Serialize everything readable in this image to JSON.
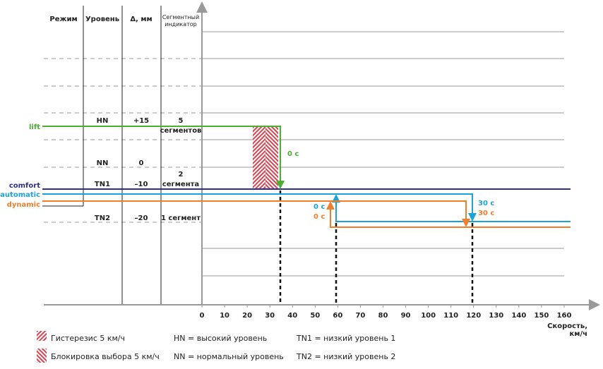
{
  "header": {
    "columns": [
      "Режим",
      "Уровень",
      "Δ, мм"
    ],
    "indicator_header": [
      "Сегментный",
      "индикатор"
    ]
  },
  "rows": [
    {
      "level": "HN",
      "delta": "+15",
      "indicator": [
        "5",
        "сегментов"
      ]
    },
    {
      "level": "NN",
      "delta": "0",
      "indicator": []
    },
    {
      "level": "TN1",
      "delta": "–10",
      "indicator": [
        "2",
        "сегмента"
      ]
    },
    {
      "level": "TN2",
      "delta": "–20",
      "indicator": [
        "1 сегмент"
      ]
    }
  ],
  "modes": [
    "lift",
    "comfort",
    "automatic",
    "dynamic"
  ],
  "timers": {
    "lift": "0 с",
    "automatic_up": "0 с",
    "dynamic_up": "0 с",
    "automatic_down": "30 с",
    "dynamic_down": "30 с"
  },
  "x_axis": {
    "ticks": [
      0,
      10,
      20,
      30,
      40,
      50,
      60,
      70,
      80,
      90,
      100,
      110,
      120,
      130,
      140,
      150,
      160
    ],
    "label": [
      "Скорость,",
      "км/ч"
    ]
  },
  "legend": {
    "hysteresis": "Гистерезис 5 км/ч",
    "lock": "Блокировка выбора 5 км/ч",
    "HN": "HN = высокий уровень",
    "NN": "NN = нормальный уровень",
    "TN1": "TN1 = низкий уровень 1",
    "TN2": "TN2 = низкий уровень 2"
  }
}
